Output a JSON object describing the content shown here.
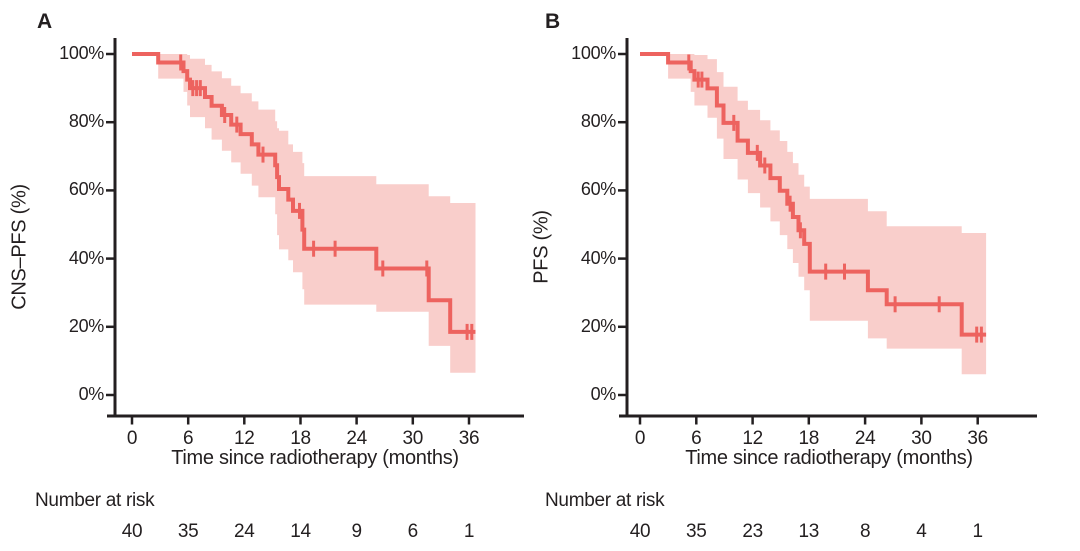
{
  "background": "#ffffff",
  "colors": {
    "curve": "#ed635f",
    "ci_band": "#f9cecb",
    "axis": "#231f20",
    "text": "#231f20"
  },
  "chart_data": [
    {
      "type": "line",
      "subtype": "kaplan_meier_step_with_ci",
      "panel_label": "A",
      "ylabel": "CNS–PFS (%)",
      "xlabel": "Time since radiotherapy (months)",
      "x_ticks": [
        0,
        6,
        12,
        18,
        24,
        30,
        36
      ],
      "y_tick_labels": [
        "0%",
        "20%",
        "40%",
        "60%",
        "80%",
        "100%"
      ],
      "xlim": [
        0,
        42
      ],
      "ylim": [
        0,
        100
      ],
      "grid": false,
      "legend": "none",
      "survival_steps_pct": [
        [
          0,
          100
        ],
        [
          2.8,
          97.5
        ],
        [
          5.5,
          95
        ],
        [
          5.9,
          92.5
        ],
        [
          6.2,
          90
        ],
        [
          7.8,
          87.4
        ],
        [
          8.5,
          84.8
        ],
        [
          9.6,
          82.1
        ],
        [
          10.6,
          79.3
        ],
        [
          11.6,
          76.5
        ],
        [
          12.8,
          73.5
        ],
        [
          13.5,
          70.5
        ],
        [
          15.3,
          67.4
        ],
        [
          15.5,
          63.9
        ],
        [
          15.7,
          60.4
        ],
        [
          16.7,
          57.3
        ],
        [
          17.2,
          54
        ],
        [
          18.2,
          48.5
        ],
        [
          18.4,
          42.9
        ],
        [
          26.1,
          37.1
        ],
        [
          31.7,
          27.8
        ],
        [
          34,
          18.5
        ]
      ],
      "curve_end_month": 36.7,
      "censor_marks_months": [
        5.2,
        6.5,
        6.9,
        7.3,
        9.9,
        11.2,
        14,
        17.9,
        19.4,
        21.7,
        26.8,
        31.5,
        35.8,
        36.3
      ],
      "ci_band_steps": [
        [
          2.8,
          92.8,
          100
        ],
        [
          5.5,
          88.9,
          100
        ],
        [
          5.9,
          84.9,
          99.7
        ],
        [
          6.2,
          81.5,
          98.6
        ],
        [
          7.8,
          78.2,
          96.8
        ],
        [
          8.5,
          74.9,
          94.9
        ],
        [
          9.6,
          71.6,
          92.9
        ],
        [
          10.6,
          68.2,
          90.7
        ],
        [
          11.6,
          64.9,
          88.5
        ],
        [
          12.8,
          61.4,
          86.1
        ],
        [
          13.5,
          58,
          83.7
        ],
        [
          15.3,
          53,
          80.3
        ],
        [
          15.5,
          46.9,
          78.2
        ],
        [
          15.7,
          42.7,
          77.5
        ],
        [
          16.7,
          39.5,
          73.5
        ],
        [
          17.2,
          36,
          71.3
        ],
        [
          18.2,
          31,
          68
        ],
        [
          18.4,
          26.5,
          64.2
        ],
        [
          26.1,
          24.4,
          61.8
        ],
        [
          31.7,
          14.4,
          58.3
        ],
        [
          34,
          6.5,
          56.3
        ]
      ],
      "number_at_risk": {
        "label": "Number at risk",
        "months": [
          0,
          6,
          12,
          18,
          24,
          30,
          36
        ],
        "values": [
          40,
          35,
          24,
          14,
          9,
          6,
          1
        ]
      }
    },
    {
      "type": "line",
      "subtype": "kaplan_meier_step_with_ci",
      "panel_label": "B",
      "ylabel": "PFS (%)",
      "xlabel": "Time since radiotherapy (months)",
      "x_ticks": [
        0,
        6,
        12,
        18,
        24,
        30,
        36
      ],
      "y_tick_labels": [
        "0%",
        "20%",
        "40%",
        "60%",
        "80%",
        "100%"
      ],
      "xlim": [
        0,
        42
      ],
      "ylim": [
        0,
        100
      ],
      "grid": false,
      "legend": "none",
      "survival_steps_pct": [
        [
          0,
          100
        ],
        [
          3,
          97.5
        ],
        [
          5.4,
          95
        ],
        [
          5.8,
          92.5
        ],
        [
          7.2,
          89.9
        ],
        [
          8.2,
          84.9
        ],
        [
          8.9,
          79.8
        ],
        [
          10.4,
          74.6
        ],
        [
          11.5,
          71
        ],
        [
          12.8,
          67.3
        ],
        [
          13.9,
          63.6
        ],
        [
          14.9,
          59.9
        ],
        [
          15.7,
          56.1
        ],
        [
          16.3,
          52.2
        ],
        [
          16.9,
          48.3
        ],
        [
          17.5,
          44.3
        ],
        [
          18.1,
          36.2
        ],
        [
          24.3,
          30.7
        ],
        [
          26.3,
          26.6
        ],
        [
          34.3,
          17.7
        ]
      ],
      "curve_end_month": 36.9,
      "censor_marks_months": [
        5.2,
        6.2,
        6.6,
        10,
        12.5,
        13.3,
        16,
        17.1,
        19.8,
        21.8,
        27.2,
        31.9,
        35.9,
        36.4
      ],
      "ci_band_steps": [
        [
          3,
          92.8,
          100
        ],
        [
          5.4,
          88.9,
          100
        ],
        [
          5.8,
          84.9,
          99.7
        ],
        [
          7.2,
          81.3,
          98.5
        ],
        [
          8.2,
          75.2,
          94.7
        ],
        [
          8.9,
          69.2,
          90.4
        ],
        [
          10.4,
          63.2,
          86.3
        ],
        [
          11.5,
          59.2,
          83.6
        ],
        [
          12.8,
          55,
          80.6
        ],
        [
          13.9,
          50.9,
          77.6
        ],
        [
          14.9,
          46.9,
          74.5
        ],
        [
          15.7,
          42.8,
          71.3
        ],
        [
          16.3,
          38.7,
          68
        ],
        [
          16.9,
          34.7,
          64.6
        ],
        [
          17.5,
          30.7,
          61.1
        ],
        [
          18.1,
          21.8,
          57.5
        ],
        [
          24.3,
          16.6,
          53.9
        ],
        [
          26.3,
          13.6,
          49.5
        ],
        [
          34.3,
          6.1,
          47.5
        ]
      ],
      "number_at_risk": {
        "label": "Number at risk",
        "months": [
          0,
          6,
          12,
          18,
          24,
          30,
          36
        ],
        "values": [
          40,
          35,
          23,
          13,
          8,
          4,
          1
        ]
      }
    }
  ]
}
